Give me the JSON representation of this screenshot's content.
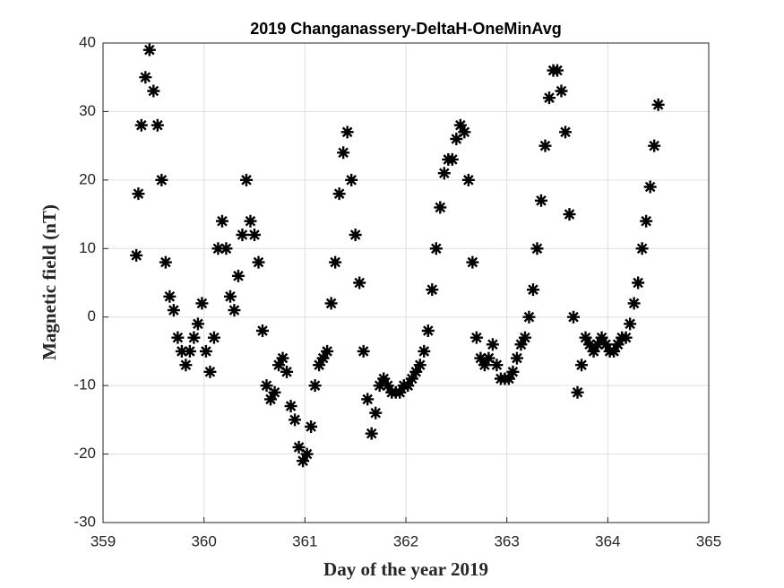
{
  "chart_data": {
    "type": "scatter",
    "title": "2019 Changanassery-DeltaH-OneMinAvg",
    "x_label": "Day of the year 2019",
    "y_label": "Magnetic field (nT)",
    "marker": "asterisk",
    "color": "#000000",
    "grid": true,
    "xlim": [
      359,
      365
    ],
    "xticks": [
      359,
      360,
      361,
      362,
      363,
      364,
      365
    ],
    "ylim": [
      -30,
      40
    ],
    "yticks": [
      -30,
      -20,
      -10,
      0,
      10,
      20,
      30,
      40
    ],
    "x": [
      359.33,
      359.35,
      359.38,
      359.42,
      359.46,
      359.5,
      359.54,
      359.58,
      359.62,
      359.66,
      359.7,
      359.74,
      359.78,
      359.82,
      359.86,
      359.9,
      359.94,
      359.98,
      360.02,
      360.06,
      360.1,
      360.14,
      360.18,
      360.22,
      360.26,
      360.3,
      360.34,
      360.38,
      360.42,
      360.46,
      360.5,
      360.54,
      360.58,
      360.62,
      360.66,
      360.7,
      360.74,
      360.78,
      360.82,
      360.86,
      360.9,
      360.94,
      360.98,
      361.02,
      361.06,
      361.1,
      361.14,
      361.18,
      361.22,
      361.26,
      361.3,
      361.34,
      361.38,
      361.42,
      361.46,
      361.5,
      361.54,
      361.58,
      361.62,
      361.66,
      361.7,
      361.74,
      361.78,
      361.82,
      361.86,
      361.9,
      361.94,
      361.98,
      362.02,
      362.06,
      362.1,
      362.14,
      362.18,
      362.22,
      362.26,
      362.3,
      362.34,
      362.38,
      362.42,
      362.46,
      362.5,
      362.54,
      362.58,
      362.62,
      362.66,
      362.7,
      362.74,
      362.78,
      362.82,
      362.86,
      362.9,
      362.94,
      362.98,
      363.02,
      363.06,
      363.1,
      363.14,
      363.18,
      363.22,
      363.26,
      363.3,
      363.34,
      363.38,
      363.42,
      363.46,
      363.5,
      363.54,
      363.58,
      363.62,
      363.66,
      363.7,
      363.74,
      363.78,
      363.82,
      363.86,
      363.9,
      363.94,
      363.98,
      364.02,
      364.06,
      364.1,
      364.14,
      364.18,
      364.22,
      364.26,
      364.3,
      364.34,
      364.38,
      364.42,
      364.46,
      364.5
    ],
    "values": [
      9,
      18,
      28,
      35,
      39,
      33,
      28,
      20,
      8,
      3,
      1,
      -3,
      -5,
      -7,
      -5,
      -3,
      -1,
      2,
      -5,
      -8,
      -3,
      10,
      14,
      10,
      3,
      1,
      6,
      12,
      20,
      14,
      12,
      8,
      -2,
      -10,
      -12,
      -11,
      -7,
      -6,
      -8,
      -13,
      -15,
      -19,
      -21,
      -20,
      -16,
      -10,
      -7,
      -6,
      -5,
      2,
      8,
      18,
      24,
      27,
      20,
      12,
      5,
      -5,
      -12,
      -17,
      -14,
      -10,
      -9,
      -10,
      -11,
      -11,
      -11,
      -10,
      -10,
      -9,
      -8,
      -7,
      -5,
      -2,
      4,
      10,
      16,
      21,
      23,
      23,
      26,
      28,
      27,
      20,
      8,
      -3,
      -6,
      -7,
      -6,
      -4,
      -7,
      -9,
      -9,
      -9,
      -8,
      -6,
      -4,
      -3,
      0,
      4,
      10,
      17,
      25,
      32,
      36,
      36,
      33,
      27,
      15,
      0,
      -11,
      -7,
      -3,
      -4,
      -5,
      -4,
      -3,
      -4,
      -5,
      -5,
      -4,
      -3,
      -3,
      -1,
      2,
      5,
      10,
      14,
      19,
      25,
      31
    ]
  }
}
